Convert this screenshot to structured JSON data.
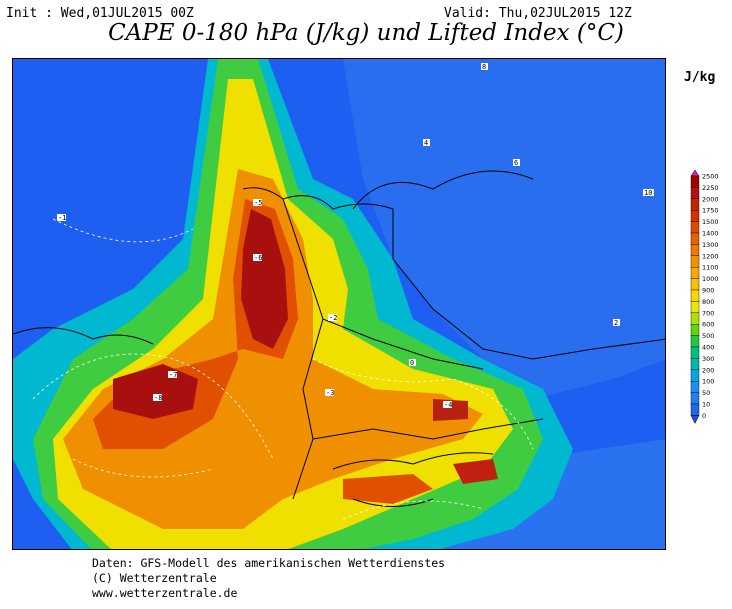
{
  "header": {
    "init": "Init : Wed,01JUL2015 00Z",
    "valid": "Valid: Thu,02JUL2015 12Z",
    "title": "CAPE 0-180 hPa (J/kg) und Lifted Index (°C)"
  },
  "legend": {
    "unit": "J/kg",
    "levels": [
      "2500",
      "2250",
      "2000",
      "1750",
      "1500",
      "1400",
      "1300",
      "1200",
      "1100",
      "1000",
      "900",
      "800",
      "700",
      "600",
      "500",
      "400",
      "300",
      "200",
      "100",
      "50",
      "10",
      "0"
    ],
    "colors": [
      "#e020b0",
      "#a00000",
      "#b81010",
      "#c82000",
      "#d83000",
      "#e04a00",
      "#e86000",
      "#f07800",
      "#f49000",
      "#f8a800",
      "#f8c000",
      "#f8d800",
      "#e8e800",
      "#b0e000",
      "#60d800",
      "#20c840",
      "#00c080",
      "#00b8b0",
      "#00a8e0",
      "#1890f0",
      "#2080f0",
      "#2068e8"
    ],
    "below_color": "#2050d8"
  },
  "map": {
    "ocean_color": "#1e5ef0",
    "li_labels": [
      "-8",
      "-7",
      "-6",
      "-5",
      "-4",
      "-3",
      "-2",
      "-1",
      "0",
      "2",
      "4",
      "6",
      "8",
      "10"
    ]
  },
  "footer": {
    "line1": "Daten: GFS-Modell des amerikanischen Wetterdienstes",
    "line2": "(C) Wetterzentrale",
    "line3": "www.wetterzentrale.de"
  }
}
